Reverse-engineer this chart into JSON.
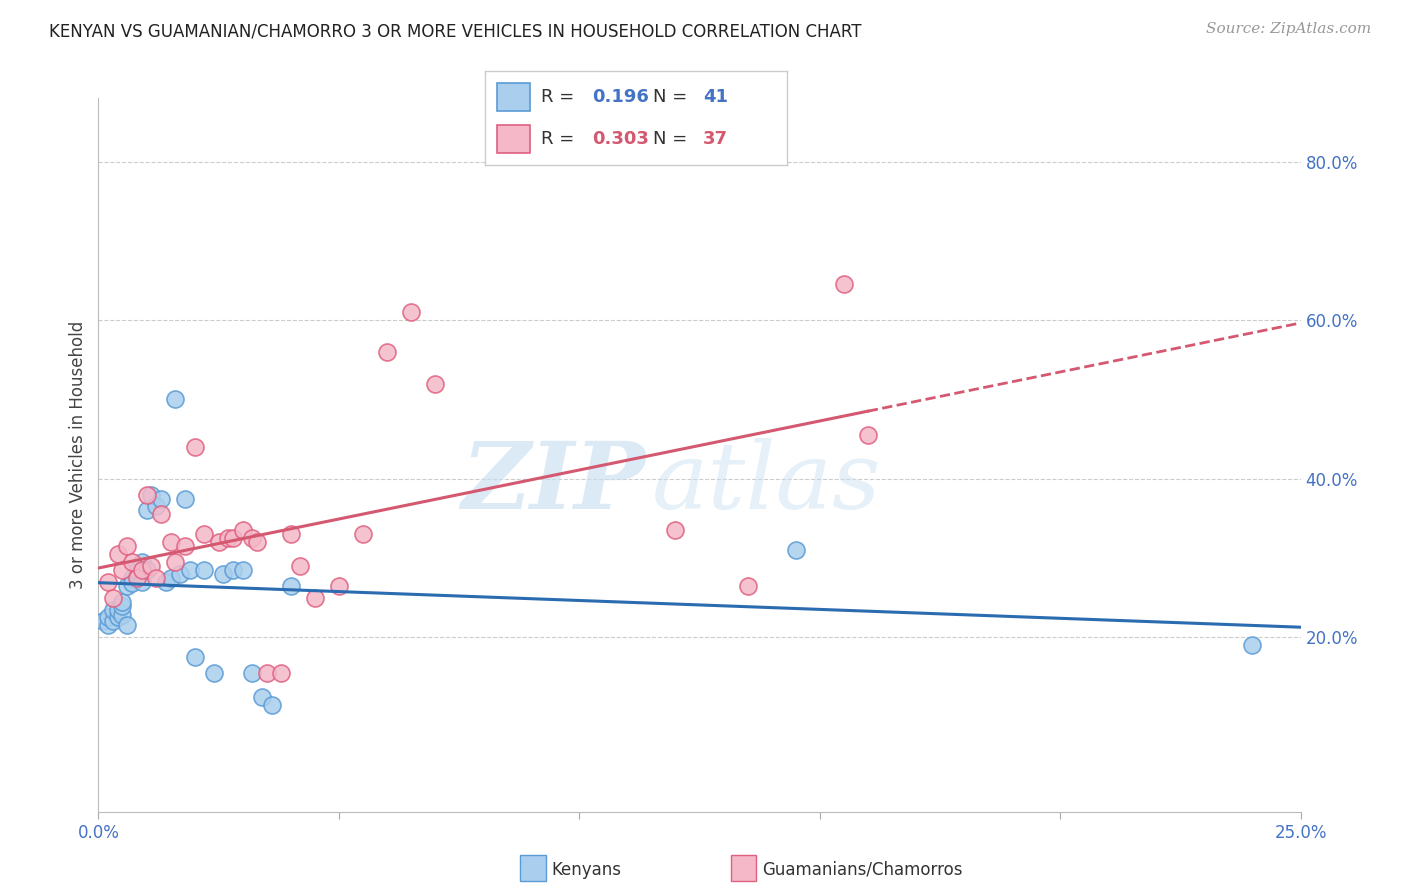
{
  "title": "KENYAN VS GUAMANIAN/CHAMORRO 3 OR MORE VEHICLES IN HOUSEHOLD CORRELATION CHART",
  "source": "Source: ZipAtlas.com",
  "ylabel": "3 or more Vehicles in Household",
  "xlim": [
    0.0,
    0.25
  ],
  "ylim": [
    -0.02,
    0.88
  ],
  "xtick_positions": [
    0.0,
    0.05,
    0.1,
    0.15,
    0.2,
    0.25
  ],
  "xtick_labels": [
    "0.0%",
    "",
    "",
    "",
    "",
    "25.0%"
  ],
  "ytick_right_positions": [
    0.2,
    0.4,
    0.6,
    0.8
  ],
  "ytick_right_labels": [
    "20.0%",
    "40.0%",
    "60.0%",
    "80.0%"
  ],
  "kenyan_R": 0.196,
  "kenyan_N": 41,
  "guamanian_R": 0.303,
  "guamanian_N": 37,
  "kenyan_scatter_face": "#aacfee",
  "kenyan_scatter_edge": "#5b9bd5",
  "guamanian_scatter_face": "#f4b8c8",
  "guamanian_scatter_edge": "#e06080",
  "kenyan_line_color": "#2b6bb0",
  "guamanian_line_color": "#d45870",
  "kenyan_x": [
    0.001,
    0.002,
    0.002,
    0.003,
    0.003,
    0.004,
    0.004,
    0.005,
    0.005,
    0.005,
    0.006,
    0.006,
    0.007,
    0.007,
    0.008,
    0.008,
    0.009,
    0.009,
    0.01,
    0.01,
    0.011,
    0.012,
    0.013,
    0.014,
    0.015,
    0.016,
    0.017,
    0.018,
    0.019,
    0.02,
    0.022,
    0.024,
    0.026,
    0.028,
    0.03,
    0.032,
    0.034,
    0.036,
    0.04,
    0.145,
    0.24
  ],
  "kenyan_y": [
    0.22,
    0.215,
    0.225,
    0.22,
    0.235,
    0.225,
    0.235,
    0.228,
    0.24,
    0.245,
    0.215,
    0.265,
    0.275,
    0.268,
    0.28,
    0.285,
    0.27,
    0.295,
    0.285,
    0.36,
    0.38,
    0.365,
    0.375,
    0.27,
    0.275,
    0.5,
    0.28,
    0.375,
    0.285,
    0.175,
    0.285,
    0.155,
    0.28,
    0.285,
    0.285,
    0.155,
    0.125,
    0.115,
    0.265,
    0.31,
    0.19
  ],
  "guamanian_x": [
    0.002,
    0.003,
    0.004,
    0.005,
    0.006,
    0.007,
    0.008,
    0.009,
    0.01,
    0.011,
    0.012,
    0.013,
    0.015,
    0.016,
    0.018,
    0.02,
    0.022,
    0.025,
    0.027,
    0.028,
    0.03,
    0.032,
    0.033,
    0.035,
    0.038,
    0.04,
    0.042,
    0.045,
    0.05,
    0.055,
    0.06,
    0.065,
    0.07,
    0.12,
    0.135,
    0.155,
    0.16
  ],
  "guamanian_y": [
    0.27,
    0.25,
    0.305,
    0.285,
    0.315,
    0.295,
    0.275,
    0.285,
    0.38,
    0.29,
    0.275,
    0.355,
    0.32,
    0.295,
    0.315,
    0.44,
    0.33,
    0.32,
    0.325,
    0.325,
    0.335,
    0.325,
    0.32,
    0.155,
    0.155,
    0.33,
    0.29,
    0.25,
    0.265,
    0.33,
    0.56,
    0.61,
    0.52,
    0.335,
    0.265,
    0.645,
    0.455
  ]
}
